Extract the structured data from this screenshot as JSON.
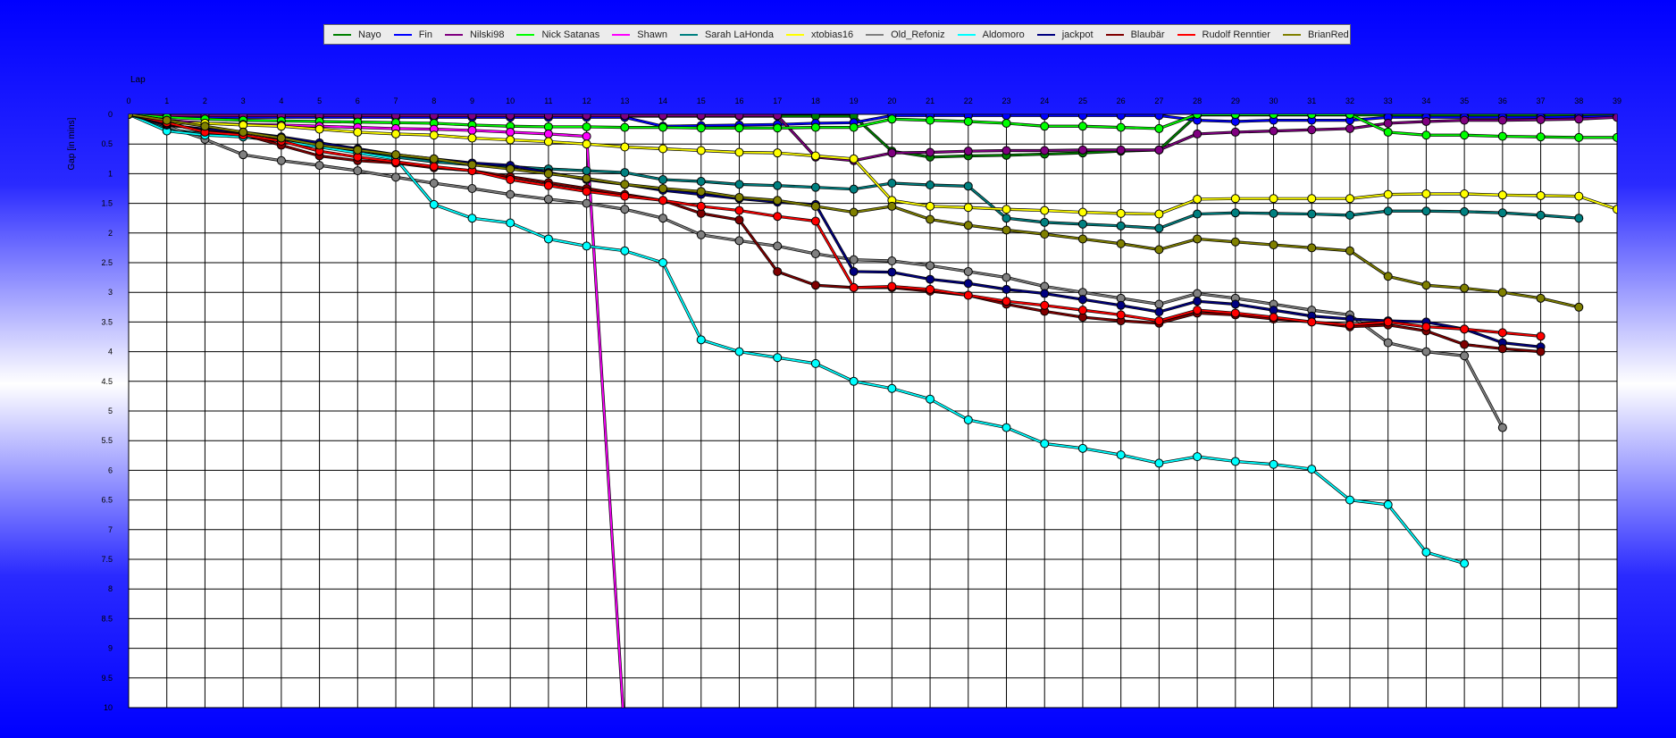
{
  "chart_data": {
    "type": "line",
    "xlabel": "Lap",
    "ylabel": "Gap [in mins]",
    "xlim": [
      0,
      39
    ],
    "ylim": [
      0,
      10
    ],
    "x_ticks": [
      0,
      1,
      2,
      3,
      4,
      5,
      6,
      7,
      8,
      9,
      10,
      11,
      12,
      13,
      14,
      15,
      16,
      17,
      18,
      19,
      20,
      21,
      22,
      23,
      24,
      25,
      26,
      27,
      28,
      29,
      30,
      31,
      32,
      33,
      34,
      35,
      36,
      37,
      38,
      39
    ],
    "y_ticks": [
      "0",
      "0.5",
      "1",
      "1.5",
      "2",
      "2.5",
      "3",
      "3.5",
      "4",
      "4.5",
      "5",
      "5.5",
      "6",
      "6.5",
      "7",
      "7.5",
      "8",
      "8.5",
      "9",
      "9.5",
      "10"
    ],
    "grid": true,
    "legend_position": "top",
    "series": [
      {
        "name": "Nayo",
        "color": "#008000",
        "values": [
          0,
          0.02,
          0.02,
          0.03,
          0.03,
          0.03,
          0.03,
          0.03,
          0.03,
          0.03,
          0.03,
          0.03,
          0.03,
          0.03,
          0.03,
          0.03,
          0.03,
          0.03,
          0.03,
          0.03,
          0.62,
          0.72,
          0.7,
          0.69,
          0.67,
          0.65,
          0.62,
          0.6,
          0.01,
          0.01,
          0.01,
          0.01,
          0.01,
          0.01,
          0.01,
          0.01,
          0.01,
          0.01,
          0.01,
          0.01
        ]
      },
      {
        "name": "Fin",
        "color": "#0000ff",
        "values": [
          0,
          0.05,
          0.05,
          0.05,
          0.05,
          0.05,
          0.05,
          0.05,
          0.05,
          0.05,
          0.05,
          0.05,
          0.05,
          0.05,
          0.2,
          0.19,
          0.18,
          0.17,
          0.15,
          0.14,
          0.02,
          0.02,
          0.02,
          0.02,
          0.02,
          0.02,
          0.02,
          0.02,
          0.1,
          0.12,
          0.1,
          0.1,
          0.1,
          0.05,
          0.05,
          0.05,
          0.05,
          0.05,
          0.04,
          0.03
        ]
      },
      {
        "name": "Nilski98",
        "color": "#800080",
        "values": [
          0,
          0.02,
          0.02,
          0.02,
          0.02,
          0.02,
          0.02,
          0.02,
          0.02,
          0.02,
          0.02,
          0.02,
          0.02,
          0.02,
          0.02,
          0.02,
          0.02,
          0.02,
          0.72,
          0.78,
          0.65,
          0.64,
          0.62,
          0.61,
          0.61,
          0.6,
          0.6,
          0.6,
          0.33,
          0.3,
          0.28,
          0.26,
          0.24,
          0.15,
          0.12,
          0.1,
          0.1,
          0.09,
          0.08,
          0.05
        ]
      },
      {
        "name": "Nick Satanas",
        "color": "#00ff00",
        "values": [
          0,
          0.05,
          0.08,
          0.1,
          0.11,
          0.12,
          0.13,
          0.14,
          0.15,
          0.18,
          0.2,
          0.21,
          0.21,
          0.22,
          0.22,
          0.23,
          0.23,
          0.23,
          0.22,
          0.22,
          0.08,
          0.1,
          0.12,
          0.15,
          0.2,
          0.2,
          0.22,
          0.24,
          0,
          0,
          0,
          0,
          0,
          0.3,
          0.35,
          0.35,
          0.37,
          0.38,
          0.39,
          0.39
        ]
      },
      {
        "name": "Shawn",
        "color": "#ff00ff",
        "values": [
          0,
          0.1,
          0.15,
          0.17,
          0.18,
          0.2,
          0.22,
          0.24,
          0.25,
          0.27,
          0.3,
          0.33,
          0.37,
          10.5
        ]
      },
      {
        "name": "Sarah LaHonda",
        "color": "#008080",
        "values": [
          0,
          0.25,
          0.33,
          0.38,
          0.43,
          0.5,
          0.65,
          0.72,
          0.8,
          0.85,
          0.88,
          0.92,
          0.95,
          0.98,
          1.1,
          1.13,
          1.18,
          1.2,
          1.23,
          1.26,
          1.16,
          1.19,
          1.21,
          1.75,
          1.82,
          1.85,
          1.88,
          1.92,
          1.68,
          1.66,
          1.67,
          1.68,
          1.7,
          1.63,
          1.63,
          1.64,
          1.66,
          1.7,
          1.75
        ]
      },
      {
        "name": "xtobias16",
        "color": "#ffff00",
        "values": [
          0,
          0.15,
          0.15,
          0.18,
          0.2,
          0.25,
          0.3,
          0.33,
          0.35,
          0.4,
          0.43,
          0.46,
          0.5,
          0.55,
          0.58,
          0.61,
          0.64,
          0.65,
          0.7,
          0.75,
          1.45,
          1.55,
          1.57,
          1.6,
          1.62,
          1.65,
          1.67,
          1.68,
          1.43,
          1.42,
          1.42,
          1.42,
          1.42,
          1.35,
          1.34,
          1.34,
          1.36,
          1.37,
          1.38,
          1.6
        ]
      },
      {
        "name": "Old_Refoniz",
        "color": "#808080",
        "values": [
          0,
          0.2,
          0.42,
          0.68,
          0.78,
          0.86,
          0.95,
          1.06,
          1.16,
          1.25,
          1.35,
          1.43,
          1.5,
          1.6,
          1.75,
          2.03,
          2.13,
          2.22,
          2.35,
          2.45,
          2.47,
          2.55,
          2.65,
          2.75,
          2.9,
          3.0,
          3.1,
          3.2,
          3.02,
          3.1,
          3.2,
          3.3,
          3.38,
          3.85,
          4.0,
          4.07,
          5.28
        ]
      },
      {
        "name": "Aldomoro",
        "color": "#00ffff",
        "values": [
          0,
          0.28,
          0.35,
          0.38,
          0.45,
          0.55,
          0.65,
          0.75,
          1.52,
          1.75,
          1.83,
          2.1,
          2.22,
          2.3,
          2.5,
          3.8,
          4.0,
          4.1,
          4.2,
          4.5,
          4.62,
          4.8,
          5.15,
          5.28,
          5.55,
          5.63,
          5.74,
          5.88,
          5.77,
          5.85,
          5.9,
          5.98,
          6.5,
          6.58,
          7.38,
          7.57
        ]
      },
      {
        "name": "jackpot",
        "color": "#000080",
        "values": [
          0,
          0.18,
          0.25,
          0.3,
          0.38,
          0.48,
          0.58,
          0.68,
          0.75,
          0.82,
          0.86,
          0.98,
          1.1,
          1.18,
          1.28,
          1.35,
          1.42,
          1.48,
          1.52,
          2.65,
          2.66,
          2.78,
          2.85,
          2.95,
          3.02,
          3.12,
          3.22,
          3.33,
          3.15,
          3.2,
          3.3,
          3.4,
          3.45,
          3.48,
          3.5,
          3.62,
          3.85,
          3.92
        ]
      },
      {
        "name": "Blaubär",
        "color": "#800000",
        "values": [
          0,
          0.16,
          0.28,
          0.34,
          0.52,
          0.7,
          0.78,
          0.82,
          0.9,
          0.95,
          1.05,
          1.15,
          1.25,
          1.35,
          1.45,
          1.67,
          1.78,
          2.65,
          2.88,
          2.92,
          2.92,
          2.98,
          3.05,
          3.2,
          3.32,
          3.42,
          3.48,
          3.52,
          3.35,
          3.38,
          3.45,
          3.5,
          3.58,
          3.55,
          3.65,
          3.88,
          3.95,
          4.0
        ]
      },
      {
        "name": "Rudolf Renntier",
        "color": "#ff0000",
        "values": [
          0,
          0.14,
          0.3,
          0.35,
          0.45,
          0.62,
          0.72,
          0.8,
          0.88,
          0.95,
          1.1,
          1.2,
          1.3,
          1.38,
          1.45,
          1.55,
          1.62,
          1.72,
          1.8,
          2.92,
          2.9,
          2.95,
          3.05,
          3.15,
          3.22,
          3.3,
          3.38,
          3.48,
          3.3,
          3.35,
          3.42,
          3.5,
          3.55,
          3.5,
          3.58,
          3.62,
          3.68,
          3.74
        ]
      },
      {
        "name": "BrianRed",
        "color": "#808000",
        "values": [
          0,
          0.1,
          0.2,
          0.3,
          0.4,
          0.52,
          0.6,
          0.68,
          0.75,
          0.85,
          0.92,
          1.0,
          1.08,
          1.18,
          1.25,
          1.3,
          1.4,
          1.45,
          1.55,
          1.65,
          1.55,
          1.77,
          1.87,
          1.95,
          2.02,
          2.1,
          2.18,
          2.28,
          2.1,
          2.15,
          2.2,
          2.25,
          2.3,
          2.73,
          2.88,
          2.93,
          3.0,
          3.1,
          3.25
        ]
      }
    ]
  }
}
